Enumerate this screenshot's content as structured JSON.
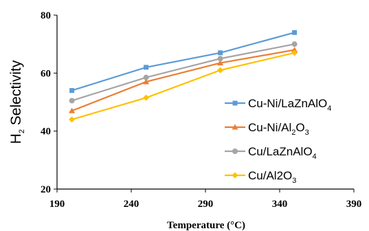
{
  "chart_data": {
    "type": "line",
    "xlabel": "Temperature (°C)",
    "ylabel": "H2 Selectivity",
    "ylabel_parts": [
      "H",
      "2",
      " Selectivity"
    ],
    "xlim": [
      190,
      390
    ],
    "ylim": [
      20,
      80
    ],
    "x_ticks": [
      190,
      240,
      290,
      340,
      390
    ],
    "y_ticks": [
      20,
      40,
      60,
      80
    ],
    "grid": false,
    "legend_position": "right",
    "x": [
      200,
      250,
      300,
      350
    ],
    "series": [
      {
        "name": "Cu-Ni/LaZnAlO4",
        "name_parts": [
          [
            "Cu-Ni/LaZnAlO",
            false
          ],
          [
            "4",
            true
          ]
        ],
        "color": "#5B9BD5",
        "marker": "square",
        "values": [
          54,
          62,
          67,
          74
        ]
      },
      {
        "name": "Cu-Ni/Al2O3",
        "name_parts": [
          [
            "Cu-Ni/Al",
            false
          ],
          [
            "2",
            true
          ],
          [
            "O",
            false
          ],
          [
            "3",
            true
          ]
        ],
        "color": "#ED7D31",
        "marker": "triangle",
        "values": [
          47,
          57,
          63.5,
          68
        ]
      },
      {
        "name": "Cu/LaZnAlO4",
        "name_parts": [
          [
            "Cu/LaZnAlO",
            false
          ],
          [
            "4",
            true
          ]
        ],
        "color": "#A5A5A5",
        "marker": "circle",
        "values": [
          50.5,
          58.5,
          65,
          70
        ]
      },
      {
        "name": "Cu/Al2O3",
        "name_parts": [
          [
            "Cu/Al2O",
            false
          ],
          [
            "3",
            true
          ]
        ],
        "color": "#FFC000",
        "marker": "diamond",
        "values": [
          44,
          51.5,
          61,
          67
        ]
      }
    ]
  }
}
